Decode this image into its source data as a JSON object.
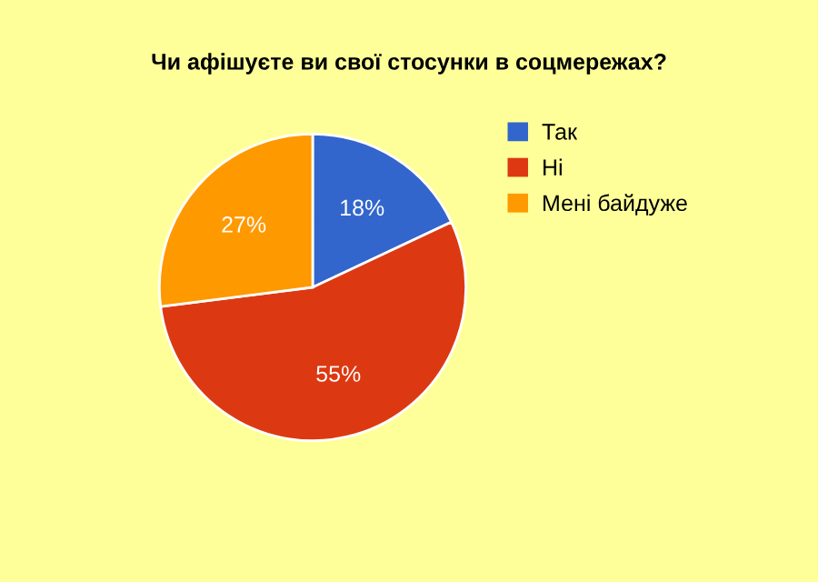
{
  "chart_data": {
    "type": "pie",
    "title": "Чи афішуєте ви свої стосунки в соцмережах?",
    "categories": [
      "Так",
      "Ні",
      "Мені байдуже"
    ],
    "values": [
      18,
      55,
      27
    ],
    "colors": [
      "#3366cc",
      "#dc3912",
      "#ff9900"
    ],
    "value_labels": [
      "18%",
      "55%",
      "27%"
    ],
    "legend": "top right"
  }
}
